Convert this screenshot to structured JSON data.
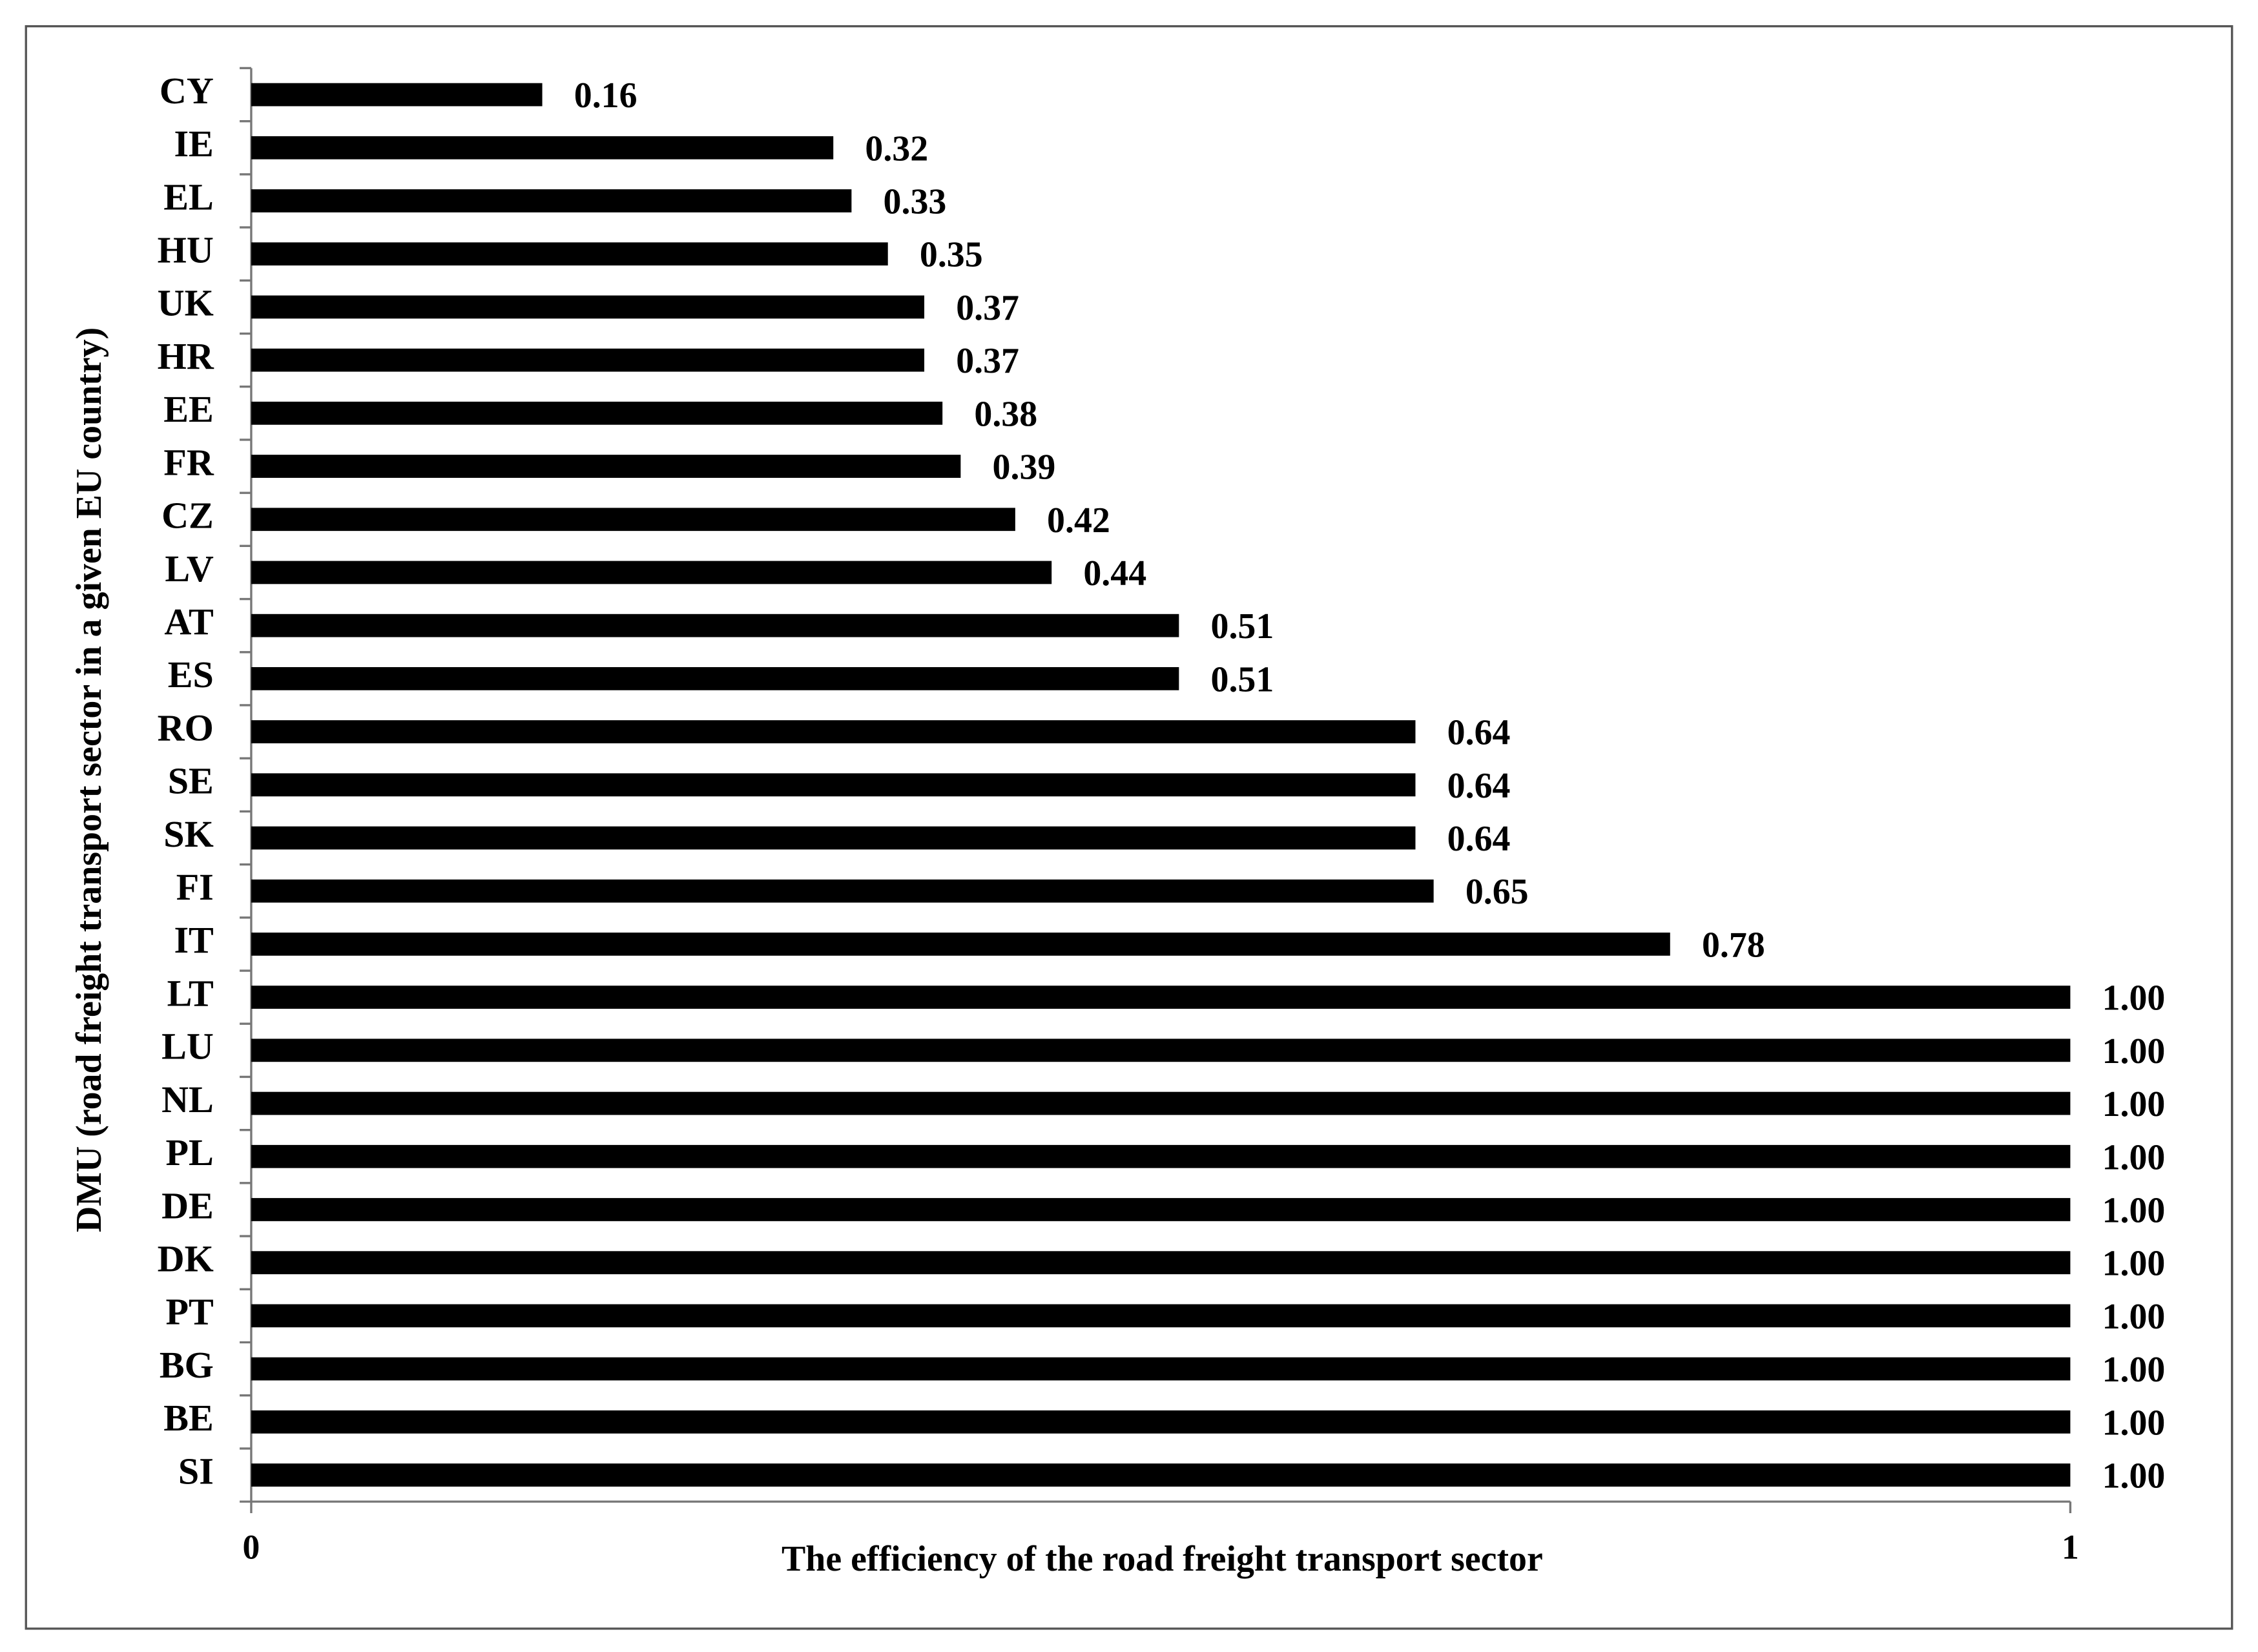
{
  "chart_data": {
    "type": "bar",
    "orientation": "horizontal",
    "xlabel": "The efficiency of the road freight transport sector",
    "ylabel": "DMU (road freight transport sector in a given EU country)",
    "categories": [
      "CY",
      "IE",
      "EL",
      "HU",
      "UK",
      "HR",
      "EE",
      "FR",
      "CZ",
      "LV",
      "AT",
      "ES",
      "RO",
      "SE",
      "SK",
      "FI",
      "IT",
      "LT",
      "LU",
      "NL",
      "PL",
      "DE",
      "DK",
      "PT",
      "BG",
      "BE",
      "SI"
    ],
    "values": [
      0.16,
      0.32,
      0.33,
      0.35,
      0.37,
      0.37,
      0.38,
      0.39,
      0.42,
      0.44,
      0.51,
      0.51,
      0.64,
      0.64,
      0.64,
      0.65,
      0.78,
      1,
      1,
      1,
      1,
      1,
      1,
      1,
      1,
      1,
      1
    ],
    "value_labels": [
      "0.16",
      "0.32",
      "0.33",
      "0.35",
      "0.37",
      "0.37",
      "0.38",
      "0.39",
      "0.42",
      "0.44",
      "0.51",
      "0.51",
      "0.64",
      "0.64",
      "0.64",
      "0.65",
      "0.78",
      "1.00",
      "1.00",
      "1.00",
      "1.00",
      "1.00",
      "1.00",
      "1.00",
      "1.00",
      "1.00",
      "1.00"
    ],
    "color": "#000000",
    "xlim": [
      0,
      1
    ],
    "xticks": [
      0,
      1
    ],
    "grid": false
  }
}
